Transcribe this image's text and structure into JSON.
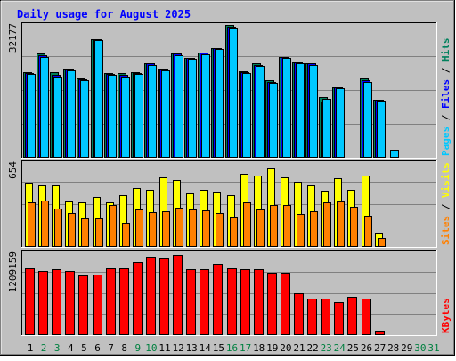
{
  "colors": {
    "frame_bg": "#c0c0c0",
    "plot_bg": "#c0c0c0",
    "grid": "#808080",
    "title": "#0000ff",
    "hits": "#00805c",
    "files": "#0000ff",
    "pages": "#00c8ff",
    "visits": "#ffff00",
    "sites": "#ff8000",
    "kbytes": "#ff0000",
    "day_weekday": "#000000",
    "day_weekend": "#008040",
    "scale_text": "#000000"
  },
  "chart_data": {
    "type": "bar",
    "title": "Daily usage for August 2025",
    "x": [
      1,
      2,
      3,
      4,
      5,
      6,
      7,
      8,
      9,
      10,
      11,
      12,
      13,
      14,
      15,
      16,
      17,
      18,
      19,
      20,
      21,
      22,
      23,
      24,
      25,
      26,
      27,
      28,
      29,
      30,
      31
    ],
    "weekend_days": [
      2,
      3,
      9,
      10,
      16,
      17,
      23,
      24,
      30,
      31
    ],
    "panels": [
      {
        "name": "hits-files-pages",
        "scale_label": "32177",
        "ylim": [
          0,
          32177
        ],
        "right_labels": [
          "Pages",
          "Files",
          "Hits"
        ],
        "series": [
          {
            "name": "Hits",
            "key": "hits",
            "values": [
              20626,
              25026,
              20626,
              21376,
              19101,
              28627,
              20366,
              20366,
              20626,
              22677,
              21377,
              25026,
              23976,
              25286,
              26326,
              31996,
              20886,
              22676,
              18580,
              24246,
              22936,
              22676,
              14500,
              17000,
              0,
              19100,
              13900,
              0,
              0,
              0,
              0
            ]
          },
          {
            "name": "Files",
            "key": "files",
            "values": [
              20366,
              24766,
              19886,
              21376,
              18840,
              28627,
              20106,
              19886,
              20366,
              22676,
              21377,
              25026,
              23976,
              25286,
              26326,
              31476,
              20626,
              22416,
              18320,
              24246,
              22936,
              22676,
              13520,
              17000,
              0,
              18580,
              13900,
              0,
              0,
              0,
              0
            ]
          },
          {
            "name": "Pages",
            "key": "pages",
            "values": [
              20106,
              24246,
              19626,
              21116,
              18580,
              28367,
              19846,
              19626,
              20106,
              22416,
              21116,
              24766,
              23716,
              24986,
              26066,
              31216,
              20366,
              22156,
              18060,
              23976,
              22676,
              22416,
              14240,
              16740,
              0,
              18320,
              13640,
              2000,
              0,
              0,
              0
            ]
          }
        ]
      },
      {
        "name": "visits-sites",
        "scale_label": "654",
        "ylim": [
          0,
          654
        ],
        "right_labels": [
          "Sites",
          "Visits"
        ],
        "series": [
          {
            "name": "Visits",
            "key": "visits",
            "values": [
              498,
              473,
              473,
              354,
              341,
              385,
              341,
              398,
              454,
              442,
              536,
              517,
              410,
              442,
              429,
              398,
              567,
              548,
              604,
              536,
              504,
              473,
              435,
              529,
              442,
              554,
              110,
              0,
              0,
              0,
              0
            ]
          },
          {
            "name": "Sites",
            "key": "sites",
            "values": [
              341,
              361,
              298,
              259,
              222,
              222,
              322,
              183,
              290,
              266,
              278,
              304,
              291,
              280,
              262,
              230,
              341,
              291,
              322,
              322,
              254,
              273,
              341,
              354,
              310,
              241,
              67,
              0,
              0,
              0,
              0
            ]
          }
        ]
      },
      {
        "name": "kbytes",
        "scale_label": "1209159",
        "ylim": [
          0,
          1209159
        ],
        "right_labels": [
          "KBytes"
        ],
        "series": [
          {
            "name": "KBytes",
            "key": "kbytes",
            "values": [
              978000,
              941000,
              956000,
              941000,
              874000,
              889000,
              972000,
              972000,
              1060000,
              1150000,
              1120000,
              1164000,
              956000,
              956000,
              1038000,
              972000,
              956000,
              956000,
              905000,
              905000,
              605000,
              530000,
              530000,
              478000,
              559000,
              530000,
              60000,
              0,
              0,
              0,
              0
            ]
          }
        ]
      }
    ]
  }
}
